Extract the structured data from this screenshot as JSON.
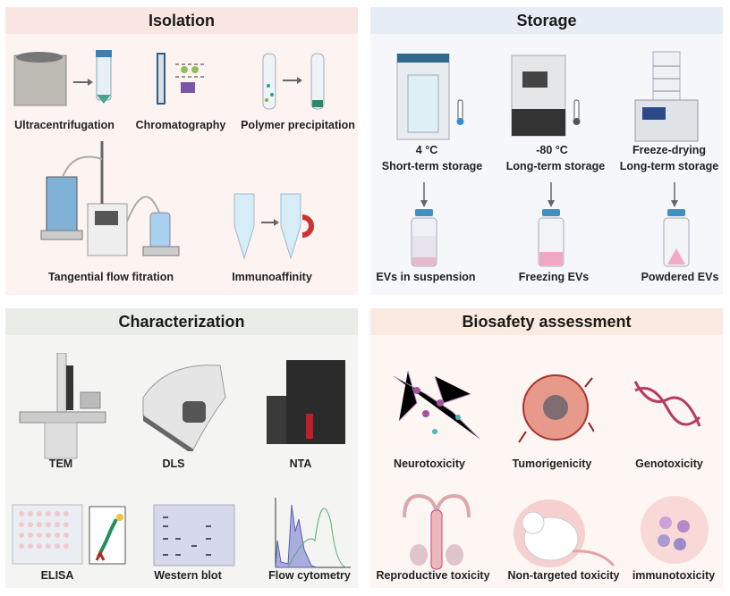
{
  "panels": {
    "isolation": {
      "title": "Isolation",
      "header_color": "#f9e6e2",
      "body_color": "#fdf4f2",
      "items": [
        "Ultracentrifugation",
        "Chromatography",
        "Polymer precipitation",
        "Tangential flow fitration",
        "Immunoaffinity"
      ]
    },
    "storage": {
      "title": "Storage",
      "header_color": "#e6edf6",
      "body_color": "#f5f7fb",
      "conditions": [
        {
          "temp": "4 °C",
          "term": "Short-term storage",
          "result": "EVs in suspension"
        },
        {
          "temp": "-80 °C",
          "term": "Long-term storage",
          "result": "Freezing EVs"
        },
        {
          "temp": "Freeze-drying",
          "term": "Long-term storage",
          "result": "Powdered EVs"
        }
      ]
    },
    "characterization": {
      "title": "Characterization",
      "header_color": "#eaece8",
      "body_color": "#f4f4f2",
      "items": [
        "TEM",
        "DLS",
        "NTA",
        "ELISA",
        "Western blot",
        "Flow cytometry"
      ]
    },
    "biosafety": {
      "title": "Biosafety assessment",
      "header_color": "#fbeadf",
      "body_color": "#fdf6f2",
      "items": [
        "Neurotoxicity",
        "Tumorigenicity",
        "Genotoxicity",
        "Reproductive toxicity",
        "Non-targeted toxicity",
        "immunotoxicity"
      ]
    }
  }
}
